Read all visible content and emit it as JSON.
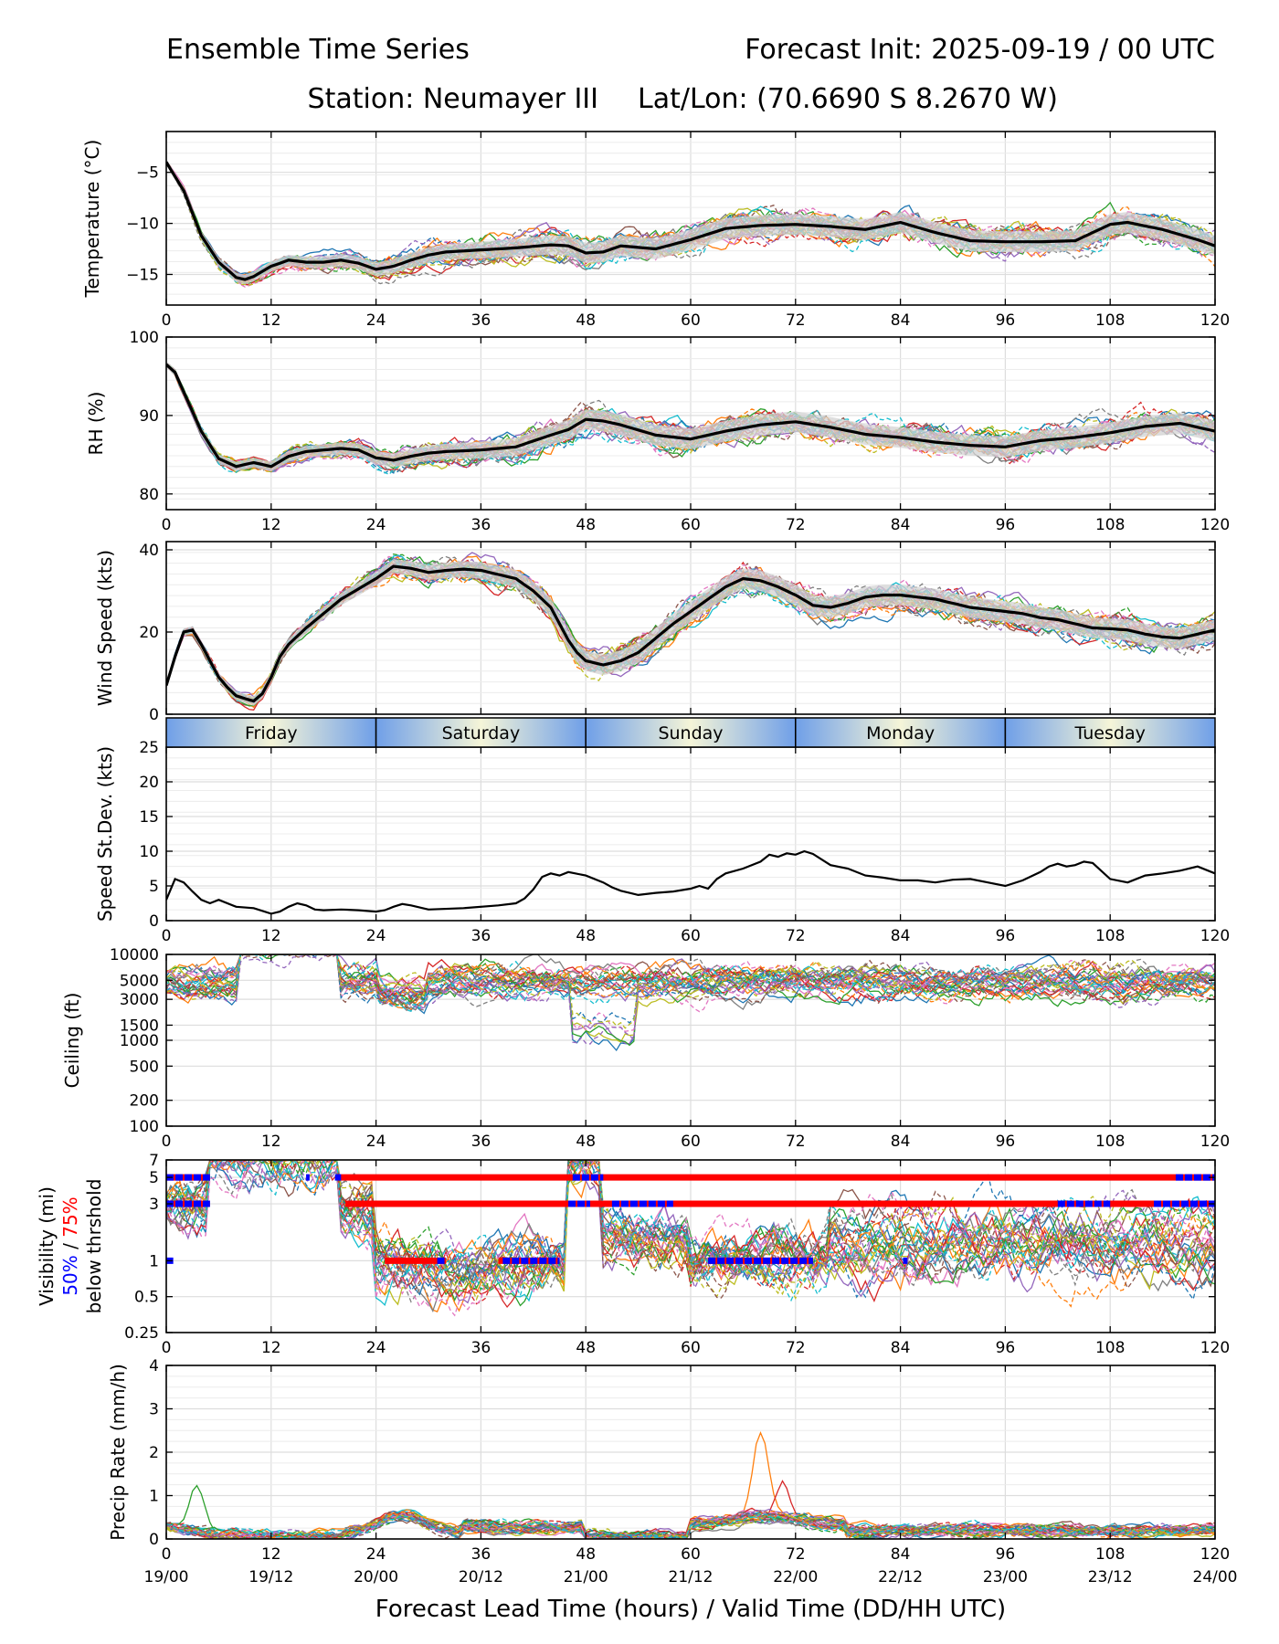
{
  "header": {
    "title_left": "Ensemble Time Series",
    "title_right": "Forecast Init: 2025-09-19 / 00 UTC",
    "station": "Station: Neumayer III",
    "latlon": "Lat/Lon: (70.6690 S 8.2670 W)"
  },
  "x_axis": {
    "label": "Forecast Lead Time (hours) / Valid Time (DD/HH UTC)",
    "range": [
      0,
      120
    ],
    "ticks": [
      0,
      12,
      24,
      36,
      48,
      60,
      72,
      84,
      96,
      108,
      120
    ],
    "tick_labels": [
      "0",
      "12",
      "24",
      "36",
      "48",
      "60",
      "72",
      "84",
      "96",
      "108",
      "120"
    ],
    "valid_labels": [
      "19/00",
      "19/12",
      "20/00",
      "20/12",
      "21/00",
      "21/12",
      "22/00",
      "22/12",
      "23/00",
      "23/12",
      "24/00"
    ]
  },
  "day_band": {
    "days": [
      "Friday",
      "Saturday",
      "Sunday",
      "Monday",
      "Tuesday"
    ],
    "colors": {
      "edge": "#6f9fe8",
      "center": "#f5f5d8"
    }
  },
  "colors": {
    "members": [
      "#1f77b4",
      "#ff7f0e",
      "#2ca02c",
      "#d62728",
      "#9467bd",
      "#8c564b",
      "#e377c2",
      "#7f7f7f",
      "#bcbd22",
      "#17becf"
    ],
    "mean": "#000000",
    "spread": "#d3d3d3",
    "p50": "#0000ff",
    "p75": "#ff0000"
  },
  "chart_data": [
    {
      "type": "line",
      "id": "temperature",
      "ylabel": "Temperature (°C)",
      "ylim": [
        -18,
        -1
      ],
      "yticks": [
        -5,
        -10,
        -15
      ],
      "ytick_labels": [
        "−5",
        "−10",
        "−15"
      ],
      "grid": true,
      "ensemble_members": 30,
      "mean": {
        "x": [
          0,
          2,
          4,
          6,
          8,
          9,
          10,
          12,
          14,
          16,
          18,
          20,
          22,
          24,
          26,
          28,
          30,
          32,
          36,
          40,
          44,
          46,
          48,
          50,
          52,
          56,
          60,
          64,
          68,
          72,
          76,
          80,
          84,
          88,
          92,
          96,
          100,
          104,
          106,
          108,
          110,
          114,
          118,
          120
        ],
        "y": [
          -4,
          -6.8,
          -11.2,
          -13.8,
          -15.3,
          -15.5,
          -15.2,
          -14.2,
          -13.6,
          -13.8,
          -13.8,
          -13.6,
          -13.9,
          -14.5,
          -14.2,
          -13.6,
          -13.1,
          -12.8,
          -12.6,
          -12.4,
          -12.1,
          -12.2,
          -12.9,
          -12.8,
          -12.2,
          -12.5,
          -11.6,
          -10.5,
          -10.2,
          -10.1,
          -10.3,
          -10.6,
          -9.9,
          -10.9,
          -11.7,
          -11.8,
          -11.8,
          -11.7,
          -10.9,
          -10.1,
          -9.9,
          -10.6,
          -11.6,
          -12.2
        ]
      }
    },
    {
      "type": "line",
      "id": "rh",
      "ylabel": "RH (%)",
      "ylim": [
        78,
        100
      ],
      "yticks": [
        80,
        90,
        100
      ],
      "ytick_labels": [
        "80",
        "90",
        "100"
      ],
      "grid": true,
      "ensemble_members": 30,
      "mean": {
        "x": [
          0,
          1,
          2,
          4,
          6,
          8,
          10,
          12,
          14,
          16,
          18,
          20,
          22,
          24,
          26,
          28,
          30,
          32,
          36,
          40,
          44,
          46,
          48,
          50,
          52,
          56,
          60,
          64,
          68,
          72,
          76,
          80,
          84,
          88,
          92,
          96,
          100,
          104,
          108,
          112,
          116,
          120
        ],
        "y": [
          96.5,
          95.5,
          93,
          88,
          84.5,
          83.5,
          84,
          83.5,
          84.8,
          85.4,
          85.6,
          85.8,
          85.6,
          84.6,
          84.3,
          84.8,
          85.2,
          85.4,
          85.6,
          86,
          87.5,
          88.2,
          89.5,
          89.3,
          88.8,
          87.5,
          87,
          88,
          88.8,
          89.2,
          88.5,
          87.6,
          87.2,
          86.6,
          86.2,
          86,
          86.8,
          87.2,
          87.8,
          88.6,
          89,
          88
        ]
      }
    },
    {
      "type": "line",
      "id": "wind_speed",
      "ylabel": "Wind Speed (kts)",
      "ylim": [
        0,
        42
      ],
      "yticks": [
        0,
        20,
        40
      ],
      "ytick_labels": [
        "0",
        "20",
        "40"
      ],
      "grid": true,
      "ensemble_members": 30,
      "mean": {
        "x": [
          0,
          1,
          2,
          3,
          4,
          5,
          6,
          7,
          8,
          9,
          10,
          11,
          12,
          13,
          14,
          16,
          18,
          20,
          22,
          24,
          26,
          28,
          30,
          32,
          34,
          36,
          38,
          40,
          42,
          44,
          45,
          46,
          47,
          48,
          50,
          52,
          54,
          56,
          58,
          60,
          62,
          64,
          66,
          68,
          70,
          72,
          74,
          76,
          78,
          80,
          82,
          84,
          86,
          88,
          90,
          92,
          94,
          96,
          98,
          100,
          102,
          104,
          106,
          108,
          110,
          112,
          114,
          116,
          118,
          120
        ],
        "y": [
          7,
          14,
          20,
          20.5,
          17,
          13,
          9,
          6.5,
          4.5,
          3.8,
          3.2,
          5,
          9,
          14,
          17,
          21,
          24.5,
          28,
          30.5,
          33,
          36,
          35.5,
          34.5,
          35,
          35.3,
          35,
          34,
          33,
          30,
          26,
          22,
          18,
          15,
          13,
          12,
          13,
          15,
          18.5,
          22,
          25,
          28,
          31,
          33,
          32.5,
          31,
          29,
          26.5,
          26,
          27,
          28.5,
          29,
          29,
          28.5,
          28,
          27,
          26,
          25.5,
          25,
          24.5,
          23.5,
          23,
          22,
          21,
          20.8,
          20.5,
          19.5,
          18.8,
          18.5,
          19.5,
          20.5
        ]
      }
    },
    {
      "type": "line",
      "id": "speed_stdev",
      "ylabel": "Speed St.Dev. (kts)",
      "ylim": [
        0,
        25
      ],
      "yticks": [
        0,
        5,
        10,
        15,
        20,
        25
      ],
      "ytick_labels": [
        "0",
        "5",
        "10",
        "15",
        "20",
        "25"
      ],
      "grid": true,
      "series": [
        {
          "name": "St.Dev.",
          "x": [
            0,
            0.5,
            1,
            2,
            3,
            4,
            5,
            6,
            8,
            10,
            12,
            13,
            14,
            15,
            16,
            17,
            18,
            20,
            22,
            24,
            25,
            26,
            27,
            28,
            30,
            34,
            38,
            40,
            41,
            42,
            43,
            44,
            45,
            46,
            48,
            50,
            51,
            52,
            53,
            54,
            56,
            58,
            60,
            61,
            62,
            63,
            64,
            66,
            68,
            69,
            70,
            71,
            72,
            73,
            74,
            76,
            78,
            80,
            82,
            84,
            86,
            88,
            90,
            92,
            94,
            96,
            98,
            100,
            101,
            102,
            103,
            104,
            105,
            106,
            108,
            110,
            112,
            114,
            116,
            118,
            120
          ],
          "y": [
            3,
            4.5,
            6,
            5.5,
            4.2,
            3,
            2.5,
            3,
            2,
            1.8,
            1,
            1.3,
            2,
            2.5,
            2.2,
            1.6,
            1.5,
            1.6,
            1.5,
            1.3,
            1.5,
            2,
            2.4,
            2.2,
            1.6,
            1.8,
            2.2,
            2.5,
            3.2,
            4.5,
            6.3,
            6.8,
            6.5,
            7,
            6.5,
            5.5,
            4.8,
            4.3,
            4,
            3.7,
            4,
            4.2,
            4.6,
            5,
            4.6,
            6,
            6.8,
            7.5,
            8.5,
            9.5,
            9.2,
            9.7,
            9.5,
            10,
            9.6,
            8,
            7.5,
            6.5,
            6.2,
            5.8,
            5.8,
            5.5,
            5.9,
            6,
            5.5,
            5,
            5.8,
            7,
            7.8,
            8.2,
            7.8,
            8,
            8.5,
            8.3,
            6,
            5.5,
            6.5,
            6.8,
            7.2,
            7.8,
            6.8
          ]
        }
      ]
    },
    {
      "type": "line",
      "id": "ceiling",
      "ylabel": "Ceiling (ft)",
      "yscale": "log",
      "ylim": [
        100,
        10000
      ],
      "yticks": [
        100,
        200,
        500,
        1000,
        1500,
        3000,
        5000,
        10000
      ],
      "ytick_labels": [
        "100",
        "200",
        "500",
        "1000",
        "1500",
        "3000",
        "5000",
        "10000"
      ],
      "grid": true,
      "ensemble_members": 30
    },
    {
      "type": "line",
      "id": "visibility",
      "ylabel": "Visibility (mi)",
      "ylabel_parts": [
        "50%",
        " / ",
        "75%"
      ],
      "ylabel_line3": "below thrshold",
      "yscale": "log",
      "ylim": [
        0.25,
        7
      ],
      "yticks": [
        0.25,
        0.5,
        1,
        3,
        5,
        7
      ],
      "ytick_labels": [
        "0.25",
        "0.5",
        "1",
        "3",
        "5",
        "7"
      ],
      "grid": true,
      "ensemble_members": 30,
      "threshold_bars": {
        "p75": [
          {
            "y": 5,
            "x0": 0,
            "x1": 5
          },
          {
            "y": 5,
            "x0": 19.5,
            "x1": 120
          },
          {
            "y": 3,
            "x0": 0,
            "x1": 5
          },
          {
            "y": 3,
            "x0": 20.5,
            "x1": 120
          },
          {
            "y": 1,
            "x0": 25,
            "x1": 32
          },
          {
            "y": 1,
            "x0": 38,
            "x1": 45
          },
          {
            "y": 1,
            "x0": 62,
            "x1": 74
          }
        ],
        "p50": [
          {
            "y": 5,
            "x0": 0,
            "x1": 5
          },
          {
            "y": 5,
            "x0": 16,
            "x1": 16.4
          },
          {
            "y": 5,
            "x0": 19.3,
            "x1": 20
          },
          {
            "y": 5,
            "x0": 46.5,
            "x1": 50
          },
          {
            "y": 5,
            "x0": 115.5,
            "x1": 120
          },
          {
            "y": 3,
            "x0": 0,
            "x1": 5
          },
          {
            "y": 3,
            "x0": 46,
            "x1": 48.5
          },
          {
            "y": 3,
            "x0": 51,
            "x1": 58
          },
          {
            "y": 3,
            "x0": 102,
            "x1": 108
          },
          {
            "y": 3,
            "x0": 113,
            "x1": 120
          },
          {
            "y": 1,
            "x0": 0,
            "x1": 0.8
          },
          {
            "y": 1,
            "x0": 31,
            "x1": 32
          },
          {
            "y": 1,
            "x0": 38.5,
            "x1": 45
          },
          {
            "y": 1,
            "x0": 62,
            "x1": 74
          },
          {
            "y": 1,
            "x0": 84.3,
            "x1": 84.8
          }
        ]
      }
    },
    {
      "type": "line",
      "id": "precip",
      "ylabel": "Precip Rate (mm/h)",
      "ylim": [
        0,
        4
      ],
      "yticks": [
        0,
        1,
        2,
        3,
        4
      ],
      "ytick_labels": [
        "0",
        "1",
        "2",
        "3",
        "4"
      ],
      "grid": true,
      "ensemble_members": 30,
      "peaks": [
        {
          "x": 68,
          "value": 2.45
        },
        {
          "x": 3.5,
          "value": 1.3
        },
        {
          "x": 70.5,
          "value": 1.4
        }
      ]
    }
  ]
}
